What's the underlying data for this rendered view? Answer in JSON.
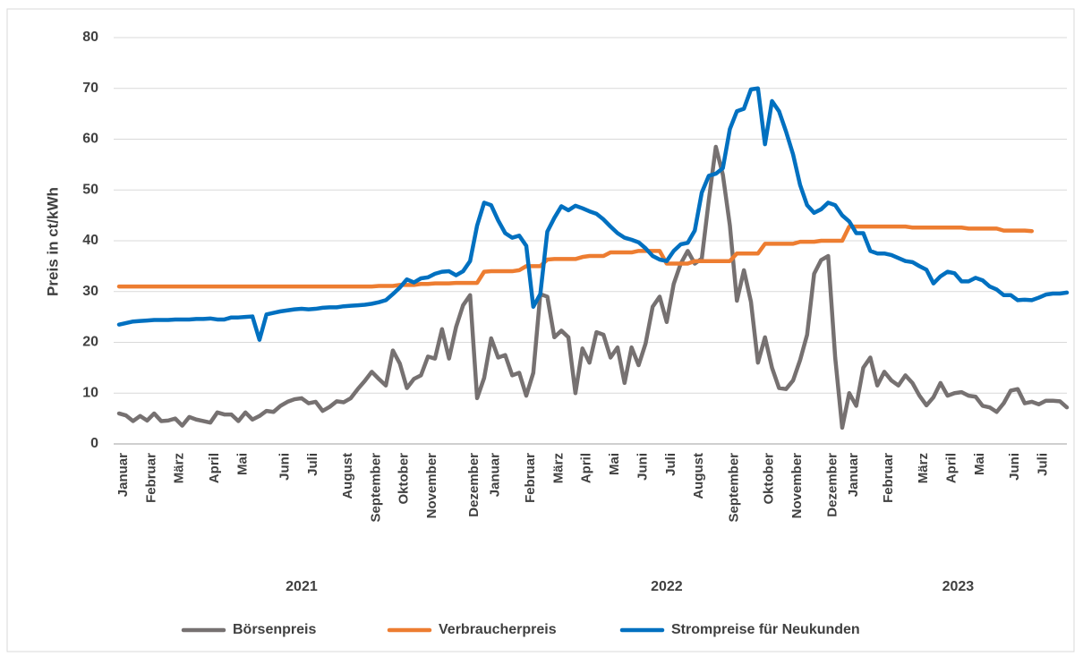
{
  "chart_data": {
    "type": "line",
    "y_label": "Preis in ct/kWh",
    "ylim": [
      0,
      80
    ],
    "yticks": [
      0,
      10,
      20,
      30,
      40,
      50,
      60,
      70,
      80
    ],
    "grid": true,
    "legend": "bottom",
    "years": [
      "2021",
      "2022",
      "2023"
    ],
    "categories": [
      "Januar",
      null,
      null,
      null,
      "Februar",
      null,
      null,
      null,
      "März",
      null,
      null,
      null,
      null,
      "April",
      null,
      null,
      null,
      "Mai",
      null,
      null,
      null,
      null,
      null,
      "Juni",
      null,
      null,
      null,
      "Juli",
      null,
      null,
      null,
      null,
      "August",
      null,
      null,
      null,
      "September",
      null,
      null,
      null,
      "Oktober",
      null,
      null,
      null,
      "November",
      null,
      null,
      null,
      null,
      null,
      "Dezember",
      null,
      null,
      "Januar",
      null,
      null,
      null,
      null,
      "Februar",
      null,
      null,
      null,
      "März",
      null,
      null,
      null,
      "April",
      null,
      null,
      null,
      "Mai",
      null,
      null,
      null,
      "Juni",
      null,
      null,
      null,
      "Juli",
      null,
      null,
      null,
      "August",
      null,
      null,
      null,
      null,
      "September",
      null,
      null,
      null,
      null,
      "Oktober",
      null,
      null,
      null,
      "November",
      null,
      null,
      null,
      null,
      "Dezember",
      null,
      null,
      "Januar",
      null,
      null,
      null,
      null,
      "Februar",
      null,
      null,
      null,
      null,
      "März",
      null,
      null,
      null,
      "April",
      null,
      null,
      null,
      "Mai",
      null,
      null,
      null,
      null,
      "Juni",
      null,
      null,
      null,
      "Juli",
      null,
      null,
      null,
      null
    ],
    "series": [
      {
        "name": "Börsenpreis",
        "color": "#767171",
        "values": [
          6.0,
          5.6,
          4.5,
          5.5,
          4.6,
          6.0,
          4.5,
          4.6,
          5.0,
          3.6,
          5.3,
          4.8,
          4.5,
          4.2,
          6.2,
          5.8,
          5.8,
          4.5,
          6.2,
          4.8,
          5.5,
          6.5,
          6.3,
          7.5,
          8.3,
          8.8,
          9.0,
          8.0,
          8.3,
          6.5,
          7.3,
          8.4,
          8.2,
          9.0,
          10.8,
          12.4,
          14.2,
          12.8,
          11.5,
          18.4,
          15.8,
          11.0,
          12.8,
          13.5,
          17.2,
          16.8,
          22.6,
          16.8,
          23.0,
          27.3,
          29.3,
          9.0,
          13.0,
          20.8,
          17.0,
          17.5,
          13.5,
          14.0,
          9.5,
          14.0,
          29.5,
          29.0,
          21.0,
          22.3,
          21.0,
          10.0,
          18.8,
          16.0,
          22.0,
          21.5,
          17.0,
          19.0,
          12.0,
          19.0,
          15.5,
          19.8,
          27.0,
          29.0,
          24.0,
          31.5,
          35.5,
          38.0,
          35.5,
          36.5,
          48.0,
          58.5,
          53.0,
          43.0,
          28.2,
          34.2,
          28.0,
          16.0,
          21.0,
          15.0,
          11.0,
          10.8,
          12.5,
          16.5,
          21.5,
          33.5,
          36.2,
          37.0,
          17.0,
          3.2,
          10.0,
          7.5,
          15.0,
          17.0,
          11.5,
          14.2,
          12.5,
          11.5,
          13.5,
          12.0,
          9.5,
          7.6,
          9.2,
          12.0,
          9.5,
          10.0,
          10.2,
          9.5,
          9.3,
          7.5,
          7.2,
          6.3,
          8.0,
          10.5,
          10.8,
          8.0,
          8.3,
          7.8,
          8.5,
          8.5,
          8.4,
          7.2
        ]
      },
      {
        "name": "Verbraucherpreis",
        "color": "#ED7D31",
        "values": [
          31.0,
          31.0,
          31.0,
          31.0,
          31.0,
          31.0,
          31.0,
          31.0,
          31.0,
          31.0,
          31.0,
          31.0,
          31.0,
          31.0,
          31.0,
          31.0,
          31.0,
          31.0,
          31.0,
          31.0,
          31.0,
          31.0,
          31.0,
          31.0,
          31.0,
          31.0,
          31.0,
          31.0,
          31.0,
          31.0,
          31.0,
          31.0,
          31.0,
          31.0,
          31.0,
          31.0,
          31.0,
          31.1,
          31.1,
          31.1,
          31.3,
          31.3,
          31.3,
          31.5,
          31.5,
          31.6,
          31.6,
          31.6,
          31.7,
          31.7,
          31.7,
          31.7,
          33.9,
          34.0,
          34.0,
          34.0,
          34.0,
          34.2,
          35.0,
          35.0,
          35.0,
          36.3,
          36.4,
          36.4,
          36.4,
          36.4,
          36.8,
          37.0,
          37.0,
          37.0,
          37.7,
          37.7,
          37.7,
          37.7,
          38.0,
          38.0,
          38.0,
          38.0,
          35.5,
          35.5,
          35.5,
          35.5,
          36.0,
          36.0,
          36.0,
          36.0,
          36.0,
          36.0,
          37.5,
          37.5,
          37.5,
          37.5,
          39.4,
          39.4,
          39.4,
          39.4,
          39.4,
          39.8,
          39.8,
          39.8,
          40.0,
          40.0,
          40.0,
          40.0,
          42.8,
          42.8,
          42.8,
          42.8,
          42.8,
          42.8,
          42.8,
          42.8,
          42.8,
          42.6,
          42.6,
          42.6,
          42.6,
          42.6,
          42.6,
          42.6,
          42.6,
          42.4,
          42.4,
          42.4,
          42.4,
          42.4,
          42.0,
          42.0,
          42.0,
          42.0,
          41.9,
          null,
          null,
          null,
          null,
          null
        ]
      },
      {
        "name": "Strompreise für Neukunden",
        "color": "#0070C0",
        "values": [
          23.5,
          23.8,
          24.1,
          24.2,
          24.3,
          24.4,
          24.4,
          24.4,
          24.5,
          24.5,
          24.5,
          24.6,
          24.6,
          24.7,
          24.5,
          24.5,
          24.9,
          24.9,
          25.0,
          25.1,
          20.5,
          25.5,
          25.8,
          26.1,
          26.3,
          26.5,
          26.6,
          26.5,
          26.6,
          26.8,
          26.9,
          26.9,
          27.1,
          27.2,
          27.3,
          27.4,
          27.6,
          27.9,
          28.3,
          29.5,
          30.8,
          32.4,
          31.8,
          32.6,
          32.8,
          33.5,
          33.9,
          34.0,
          33.2,
          34.0,
          36.0,
          43.0,
          47.5,
          47.0,
          44.0,
          41.5,
          40.6,
          41.0,
          39.0,
          27.0,
          29.5,
          41.8,
          44.5,
          46.8,
          46.0,
          46.9,
          46.4,
          45.8,
          45.3,
          44.2,
          42.8,
          41.5,
          40.6,
          40.2,
          39.7,
          38.5,
          37.0,
          36.3,
          36.0,
          38.0,
          39.3,
          39.6,
          42.0,
          49.5,
          52.8,
          53.2,
          54.3,
          62.0,
          65.5,
          66.0,
          69.8,
          70.0,
          59.0,
          67.5,
          65.5,
          61.5,
          57.0,
          51.0,
          47.0,
          45.5,
          46.2,
          47.5,
          47.0,
          45.0,
          43.8,
          41.5,
          41.5,
          38.0,
          37.5,
          37.5,
          37.2,
          36.6,
          36.0,
          35.8,
          35.0,
          34.3,
          31.6,
          33.0,
          33.9,
          33.6,
          32.0,
          32.0,
          32.7,
          32.2,
          31.0,
          30.4,
          29.3,
          29.3,
          28.3,
          28.4,
          28.3,
          28.8,
          29.4,
          29.6,
          29.6,
          29.8
        ]
      }
    ]
  }
}
